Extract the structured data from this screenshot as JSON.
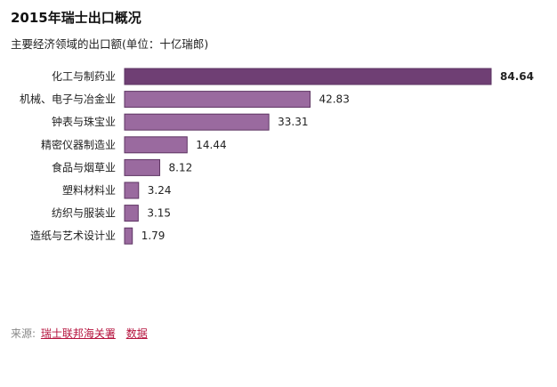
{
  "title": "2015年瑞士出口概况",
  "subtitle": "主要经济领域的出口额(单位：十亿瑞郎)",
  "source": {
    "label": "来源:",
    "links": [
      "瑞士联邦海关署",
      "数据"
    ]
  },
  "colors": {
    "bar_top": "#6f3f74",
    "bar": "#9a6a9f",
    "bar_stroke": "#5e3563",
    "source_link": "#b5123d"
  },
  "chart_data": {
    "type": "bar",
    "orientation": "horizontal",
    "categories": [
      "化工与制药业",
      "机械、电子与冶金业",
      "钟表与珠宝业",
      "精密仪器制造业",
      "食品与烟草业",
      "塑料材料业",
      "纺织与服装业",
      "造纸与艺术设计业"
    ],
    "values": [
      84.64,
      42.83,
      33.31,
      14.44,
      8.12,
      3.24,
      3.15,
      1.79
    ],
    "value_labels": [
      "84.64",
      "42.83",
      "33.31",
      "14.44",
      "8.12",
      "3.24",
      "3.15",
      "1.79"
    ],
    "xlim": [
      0,
      84.64
    ],
    "grid": false,
    "legend": "none"
  }
}
